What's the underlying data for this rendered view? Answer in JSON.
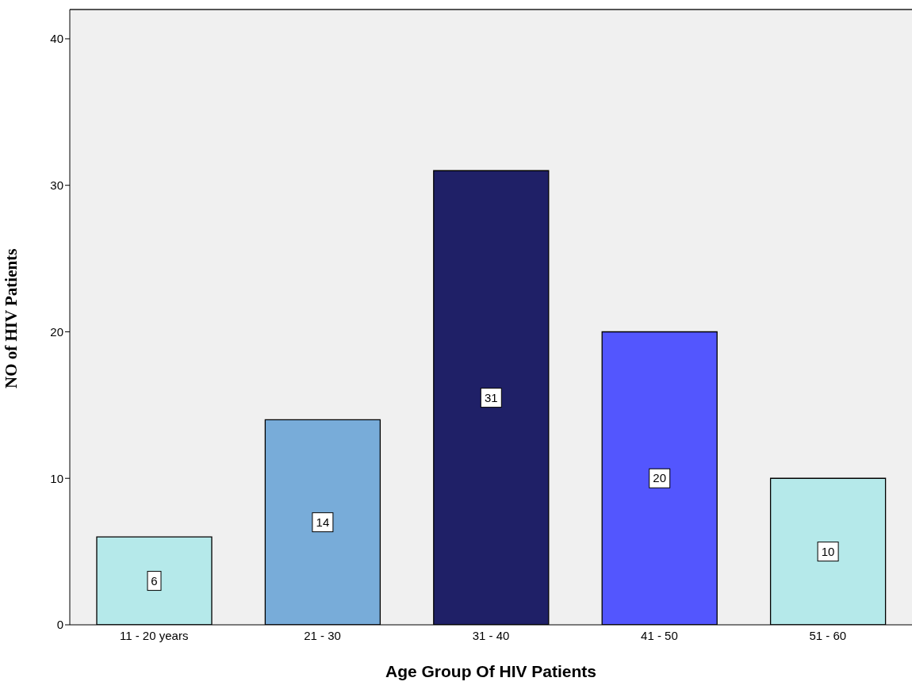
{
  "chart_data": {
    "type": "bar",
    "xlabel": "Age Group Of HIV Patients",
    "ylabel": "NO of HIV Patients",
    "categories": [
      "11 - 20 years",
      "21 - 30",
      "31 - 40",
      "41 - 50",
      "51 - 60"
    ],
    "values": [
      6,
      14,
      31,
      20,
      10
    ],
    "colors": [
      "#b5e9ea",
      "#78acd9",
      "#1f2067",
      "#5356fe",
      "#b5e9ea"
    ],
    "ylim": [
      0,
      42
    ],
    "yticks": [
      0,
      10,
      20,
      30,
      40
    ],
    "grid": false,
    "data_labels": true
  }
}
